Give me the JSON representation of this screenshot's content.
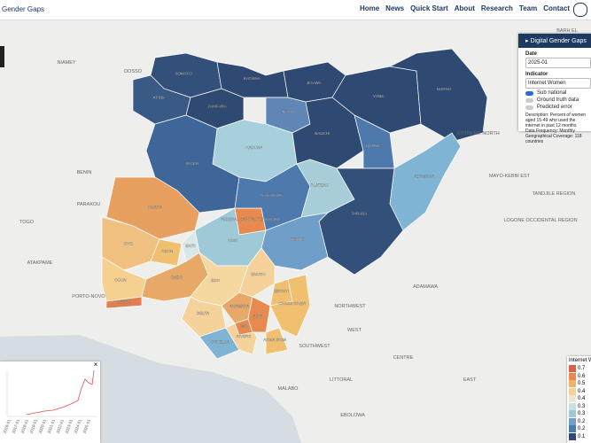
{
  "nav": {
    "brand": "Gender Gaps",
    "links": [
      "Home",
      "News",
      "Quick Start",
      "About",
      "Research",
      "Team",
      "Contact"
    ]
  },
  "map": {
    "states": [
      {
        "name": "SOKOTO",
        "color": "#33507a"
      },
      {
        "name": "KEBBI",
        "color": "#3a5a86"
      },
      {
        "name": "ZAMFARA",
        "color": "#2f4a72"
      },
      {
        "name": "KATSINA",
        "color": "#2f4a72"
      },
      {
        "name": "KANO",
        "color": "#5f86b5"
      },
      {
        "name": "JIGAWA",
        "color": "#2f4a72"
      },
      {
        "name": "YOBE",
        "color": "#2f4a72"
      },
      {
        "name": "BORNO",
        "color": "#2f4a72"
      },
      {
        "name": "KADUNA",
        "color": "#a8d0dc"
      },
      {
        "name": "BAUCHI",
        "color": "#2f4a72"
      },
      {
        "name": "GOMBE",
        "color": "#4d79ad"
      },
      {
        "name": "NIGER",
        "color": "#3e6698"
      },
      {
        "name": "KWARA",
        "color": "#e8a060"
      },
      {
        "name": "FEDERAL CAPITAL TERRITORY",
        "color": "#e88a50"
      },
      {
        "name": "NASARAWA",
        "color": "#4d79ad"
      },
      {
        "name": "PLATEAU",
        "color": "#a6cdd8"
      },
      {
        "name": "ADAMAWA",
        "color": "#7fb4d4"
      },
      {
        "name": "TARABA",
        "color": "#33507a"
      },
      {
        "name": "BENUE",
        "color": "#6f9fc8"
      },
      {
        "name": "KOGI",
        "color": "#9ec9d6"
      },
      {
        "name": "OYO",
        "color": "#f0c080"
      },
      {
        "name": "OGUN",
        "color": "#f5d090"
      },
      {
        "name": "OSUN",
        "color": "#f0c070"
      },
      {
        "name": "EKITI",
        "color": "#d8e8e8"
      },
      {
        "name": "ONDO",
        "color": "#e8a868"
      },
      {
        "name": "EDO",
        "color": "#f5d8a0"
      },
      {
        "name": "LAGOS",
        "color": "#e08050"
      },
      {
        "name": "DELTA",
        "color": "#f5d29a"
      },
      {
        "name": "BAYELSA",
        "color": "#7fb4d4"
      },
      {
        "name": "RIVERS",
        "color": "#f5d29a"
      },
      {
        "name": "ANAMBRA",
        "color": "#e8a868"
      },
      {
        "name": "ENUGU",
        "color": "#f5d29a"
      },
      {
        "name": "EBONYI",
        "color": "#f0c070"
      },
      {
        "name": "IMO",
        "color": "#e88a50"
      },
      {
        "name": "ABIA",
        "color": "#e88a50"
      },
      {
        "name": "AKWA IBOM",
        "color": "#f0c070"
      },
      {
        "name": "CROSS RIVER",
        "color": "#f0c070"
      }
    ],
    "places": [
      "NIAMEY",
      "DOSSO",
      "BENIN",
      "PARAKOU",
      "TOGO",
      "ATAKPAME",
      "PORTO-NOVO",
      "EXTREME NORTH",
      "MAYO-KEBBI EST",
      "TANDJILE REGION",
      "LOGONE OCCIDENTAL REGION",
      "ADAMAWA",
      "NORTHWEST",
      "WEST",
      "SOUTHWEST",
      "LITTORAL",
      "CENTRE",
      "EAST",
      "BARH EL",
      "MALABO",
      "EBOLOWA"
    ]
  },
  "panel": {
    "title": "Digital Gender Gaps",
    "date_label": "Date",
    "date": "2025-01",
    "indicator_label": "Indicator",
    "indicator": "Internet Women",
    "toggles": [
      "Sub national",
      "Ground truth data",
      "Predicted error"
    ],
    "description": "Description: Percent of women aged 15-49 who used the internet in past 12 months",
    "frequency": "Data Frequency: Monthly",
    "coverage": "Geographical Coverage: 118 countries"
  },
  "legend": {
    "title": "Internet W",
    "labels": [
      "0.7",
      "0.6",
      "0.5",
      "0.4",
      "0.4",
      "0.3",
      "0.3",
      "0.2",
      "0.2",
      "0.1"
    ],
    "colors": [
      "#d7604d",
      "#e88a50",
      "#f0b070",
      "#f5d29a",
      "#eee8d0",
      "#c8e0e6",
      "#9ec9d6",
      "#6f9fc8",
      "#4d79ad",
      "#2f4a72"
    ]
  },
  "chart": {
    "xlabels": [
      "2016-01",
      "2017-01",
      "2018-01",
      "2019-01",
      "2020-01",
      "2021-01",
      "2022-01",
      "2023-01",
      "2024-01",
      "2025-01"
    ]
  }
}
